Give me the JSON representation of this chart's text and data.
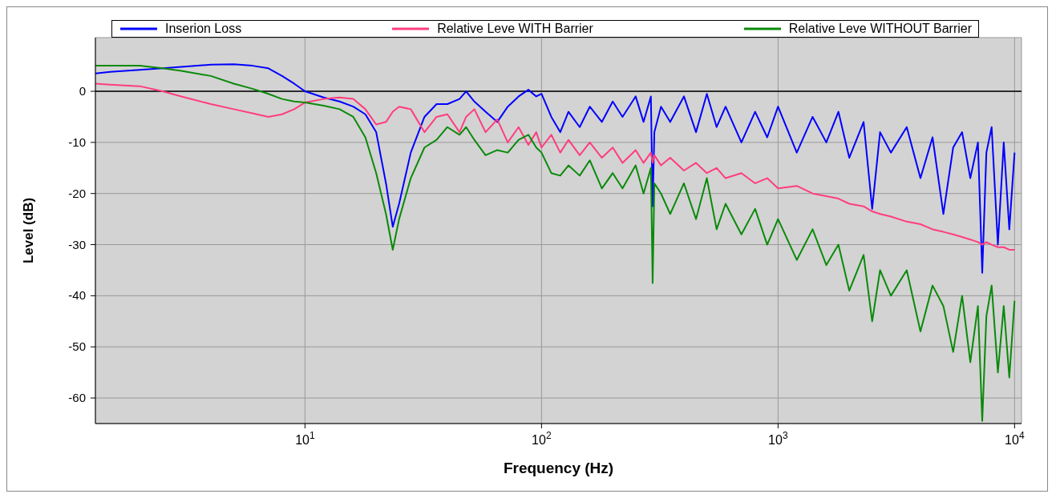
{
  "chart_data": {
    "type": "line",
    "xlabel": "Frequency (Hz)",
    "ylabel": "Level (dB)",
    "log": "x",
    "grid": true,
    "legend": "top",
    "marker": "none",
    "line_style": "solid",
    "xlim": [
      1.3,
      10700
    ],
    "xticks": [
      {
        "value": 10,
        "label": "10$^{1}$"
      },
      {
        "value": 100,
        "label": "10$^{2}$"
      },
      {
        "value": 1000,
        "label": "10$^{3}$"
      },
      {
        "value": 10000,
        "label": "10$^{4}$"
      }
    ],
    "ylim": [
      -65,
      10.5
    ],
    "yticks": [
      -60,
      -50,
      -40,
      -30,
      -20,
      -10,
      0
    ],
    "ref_lines": [
      {
        "axis": "y",
        "value": 0,
        "color": "#000000"
      }
    ],
    "x": [
      1.3,
      1.5,
      2,
      2.5,
      3,
      4,
      5,
      6,
      7,
      8,
      9,
      10,
      12,
      14,
      16,
      18,
      20,
      22,
      23.5,
      25,
      28,
      32,
      36,
      40,
      45,
      48,
      52,
      58,
      65,
      72,
      80,
      88,
      95,
      100,
      110,
      120,
      130,
      145,
      160,
      180,
      200,
      220,
      250,
      270,
      290,
      295,
      300,
      320,
      350,
      400,
      450,
      500,
      550,
      600,
      700,
      800,
      900,
      1000,
      1200,
      1400,
      1600,
      1800,
      2000,
      2300,
      2500,
      2700,
      3000,
      3500,
      4000,
      4500,
      5000,
      5500,
      6000,
      6500,
      7000,
      7300,
      7600,
      8000,
      8500,
      9000,
      9500,
      10000
    ],
    "series": [
      {
        "name": "Inserion Loss",
        "color": "#0000ff",
        "values": [
          3.5,
          3.8,
          4.2,
          4.5,
          4.8,
          5.2,
          5.3,
          5,
          4.5,
          3,
          1.5,
          0,
          -1.2,
          -2,
          -3,
          -4.5,
          -8,
          -18,
          -26.5,
          -22,
          -12,
          -5,
          -2.5,
          -2.5,
          -1.5,
          0,
          -2,
          -4,
          -6,
          -3,
          -1,
          0.3,
          -1,
          -0.5,
          -5,
          -8,
          -4,
          -7,
          -3,
          -6,
          -2,
          -5,
          -1,
          -6,
          -1,
          -22.5,
          -8,
          -3,
          -6,
          -1,
          -8,
          -0.5,
          -7,
          -3,
          -10,
          -4,
          -9,
          -3,
          -12,
          -5,
          -10,
          -4,
          -13,
          -6,
          -23,
          -8,
          -12,
          -7,
          -17,
          -9,
          -24,
          -11,
          -8,
          -17,
          -10,
          -35.5,
          -12,
          -7,
          -30,
          -10,
          -27,
          -12
        ]
      },
      {
        "name": "Relative Leve WITH Barrier",
        "color": "#ff3d7f",
        "values": [
          1.5,
          1.3,
          1,
          0,
          -1,
          -2.5,
          -3.5,
          -4.3,
          -5,
          -4.5,
          -3.5,
          -2.2,
          -1.5,
          -1.2,
          -1.5,
          -3.5,
          -6.5,
          -6,
          -4,
          -3,
          -3.5,
          -8,
          -5,
          -4.5,
          -8,
          -5,
          -3.5,
          -8,
          -5.5,
          -10,
          -7,
          -10.5,
          -8,
          -11,
          -8.5,
          -12,
          -9.5,
          -12.5,
          -10,
          -13,
          -11,
          -14,
          -11.5,
          -14,
          -12,
          -14,
          -12.5,
          -14.5,
          -13,
          -15.5,
          -14,
          -16,
          -15,
          -17,
          -16,
          -18,
          -17,
          -19,
          -18.5,
          -20,
          -20.5,
          -21,
          -22,
          -22.5,
          -23.5,
          -24,
          -24.5,
          -25.5,
          -26,
          -27,
          -27.5,
          -28,
          -28.5,
          -29,
          -29.5,
          -30,
          -29.5,
          -30,
          -30.5,
          -30.5,
          -31,
          -31
        ]
      },
      {
        "name": "Relative Leve WITHOUT Barrier",
        "color": "#0a8a0a",
        "values": [
          5,
          5,
          5,
          4.5,
          4,
          3,
          1.5,
          0.5,
          -0.5,
          -1.5,
          -2,
          -2.2,
          -2.8,
          -3.5,
          -5,
          -9,
          -16,
          -24,
          -31,
          -25,
          -17,
          -11,
          -9.5,
          -7,
          -8.5,
          -7,
          -9.5,
          -12.5,
          -11.5,
          -12,
          -9.5,
          -8.5,
          -11,
          -12,
          -16,
          -16.5,
          -14.5,
          -16.5,
          -13.5,
          -19,
          -16,
          -19,
          -14.5,
          -20,
          -15,
          -37.5,
          -18,
          -20,
          -24,
          -18,
          -25,
          -17,
          -27,
          -22,
          -28,
          -23,
          -30,
          -25,
          -33,
          -27,
          -34,
          -30,
          -39,
          -32,
          -45,
          -35,
          -40,
          -35,
          -47,
          -38,
          -42,
          -51,
          -40,
          -53,
          -42,
          -64.5,
          -44,
          -38,
          -55,
          -42,
          -56,
          -41
        ]
      }
    ]
  }
}
